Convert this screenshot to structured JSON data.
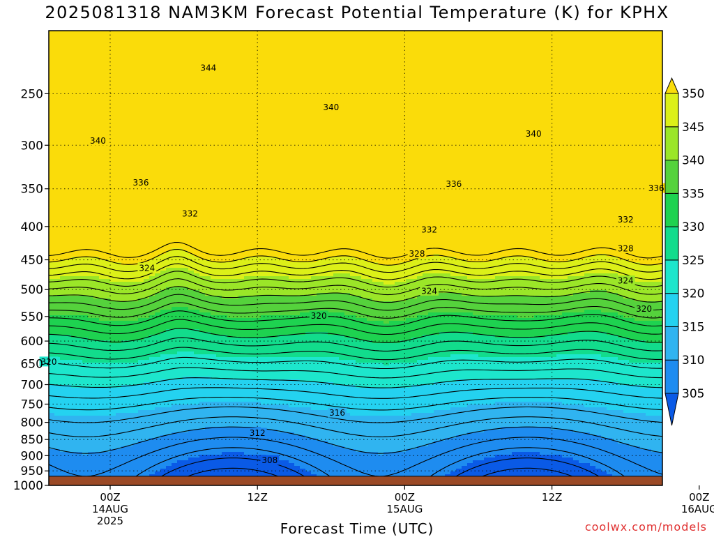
{
  "chart_data": {
    "type": "heatmap",
    "title": "2025081318 NAM3KM Forecast Potential Temperature (K) for KPHX",
    "xlabel": "Forecast Time (UTC)",
    "ylabel": "",
    "y_axis": {
      "unit": "hPa",
      "reversed": true,
      "range": [
        1000,
        200
      ],
      "ticks": [
        250,
        300,
        350,
        400,
        450,
        500,
        550,
        600,
        650,
        700,
        750,
        800,
        850,
        900,
        950,
        1000
      ]
    },
    "x_axis": {
      "range_hours": [
        -5,
        45
      ],
      "ticks": [
        {
          "hour": 0,
          "lines": [
            "00Z",
            "14AUG",
            "2025"
          ]
        },
        {
          "hour": 12,
          "lines": [
            "12Z"
          ]
        },
        {
          "hour": 24,
          "lines": [
            "00Z",
            "15AUG"
          ]
        },
        {
          "hour": 36,
          "lines": [
            "12Z"
          ]
        },
        {
          "hour": 48,
          "lines": [
            "00Z",
            "16AUG"
          ]
        }
      ]
    },
    "colorbar": {
      "levels": [
        305,
        310,
        315,
        320,
        325,
        330,
        335,
        340,
        345,
        350
      ],
      "colors": [
        "#0a5ae6",
        "#1e8cf0",
        "#30b4f0",
        "#24d2f0",
        "#1de6cc",
        "#12dc8c",
        "#1ed250",
        "#55d23c",
        "#9be628",
        "#dcf018",
        "#fadc0a"
      ]
    },
    "grid": "dotted",
    "terrain_color": "#9b4a26",
    "isentrope_labels": [
      {
        "text": "344",
        "hour": 8.0,
        "p": 228
      },
      {
        "text": "340",
        "hour": -1.0,
        "p": 295
      },
      {
        "text": "340",
        "hour": 18.0,
        "p": 262
      },
      {
        "text": "340",
        "hour": 34.5,
        "p": 288
      },
      {
        "text": "336",
        "hour": 2.5,
        "p": 342
      },
      {
        "text": "336",
        "hour": 28.0,
        "p": 344
      },
      {
        "text": "336",
        "hour": 44.5,
        "p": 349
      },
      {
        "text": "332",
        "hour": 6.5,
        "p": 382
      },
      {
        "text": "332",
        "hour": 26.0,
        "p": 404
      },
      {
        "text": "332",
        "hour": 42.0,
        "p": 390
      },
      {
        "text": "328",
        "hour": 25.0,
        "p": 440
      },
      {
        "text": "328",
        "hour": 42.0,
        "p": 432
      },
      {
        "text": "324",
        "hour": 3.0,
        "p": 463
      },
      {
        "text": "324",
        "hour": 26.0,
        "p": 502
      },
      {
        "text": "324",
        "hour": 42.0,
        "p": 484
      },
      {
        "text": "320",
        "hour": 17.0,
        "p": 548
      },
      {
        "text": "320",
        "hour": 43.5,
        "p": 535
      },
      {
        "text": "320",
        "hour": -5.0,
        "p": 645
      },
      {
        "text": "316",
        "hour": 18.5,
        "p": 773
      },
      {
        "text": "312",
        "hour": 12.0,
        "p": 830
      },
      {
        "text": "308",
        "hour": 13.0,
        "p": 914
      }
    ]
  },
  "credit": "coolwx.com/models"
}
